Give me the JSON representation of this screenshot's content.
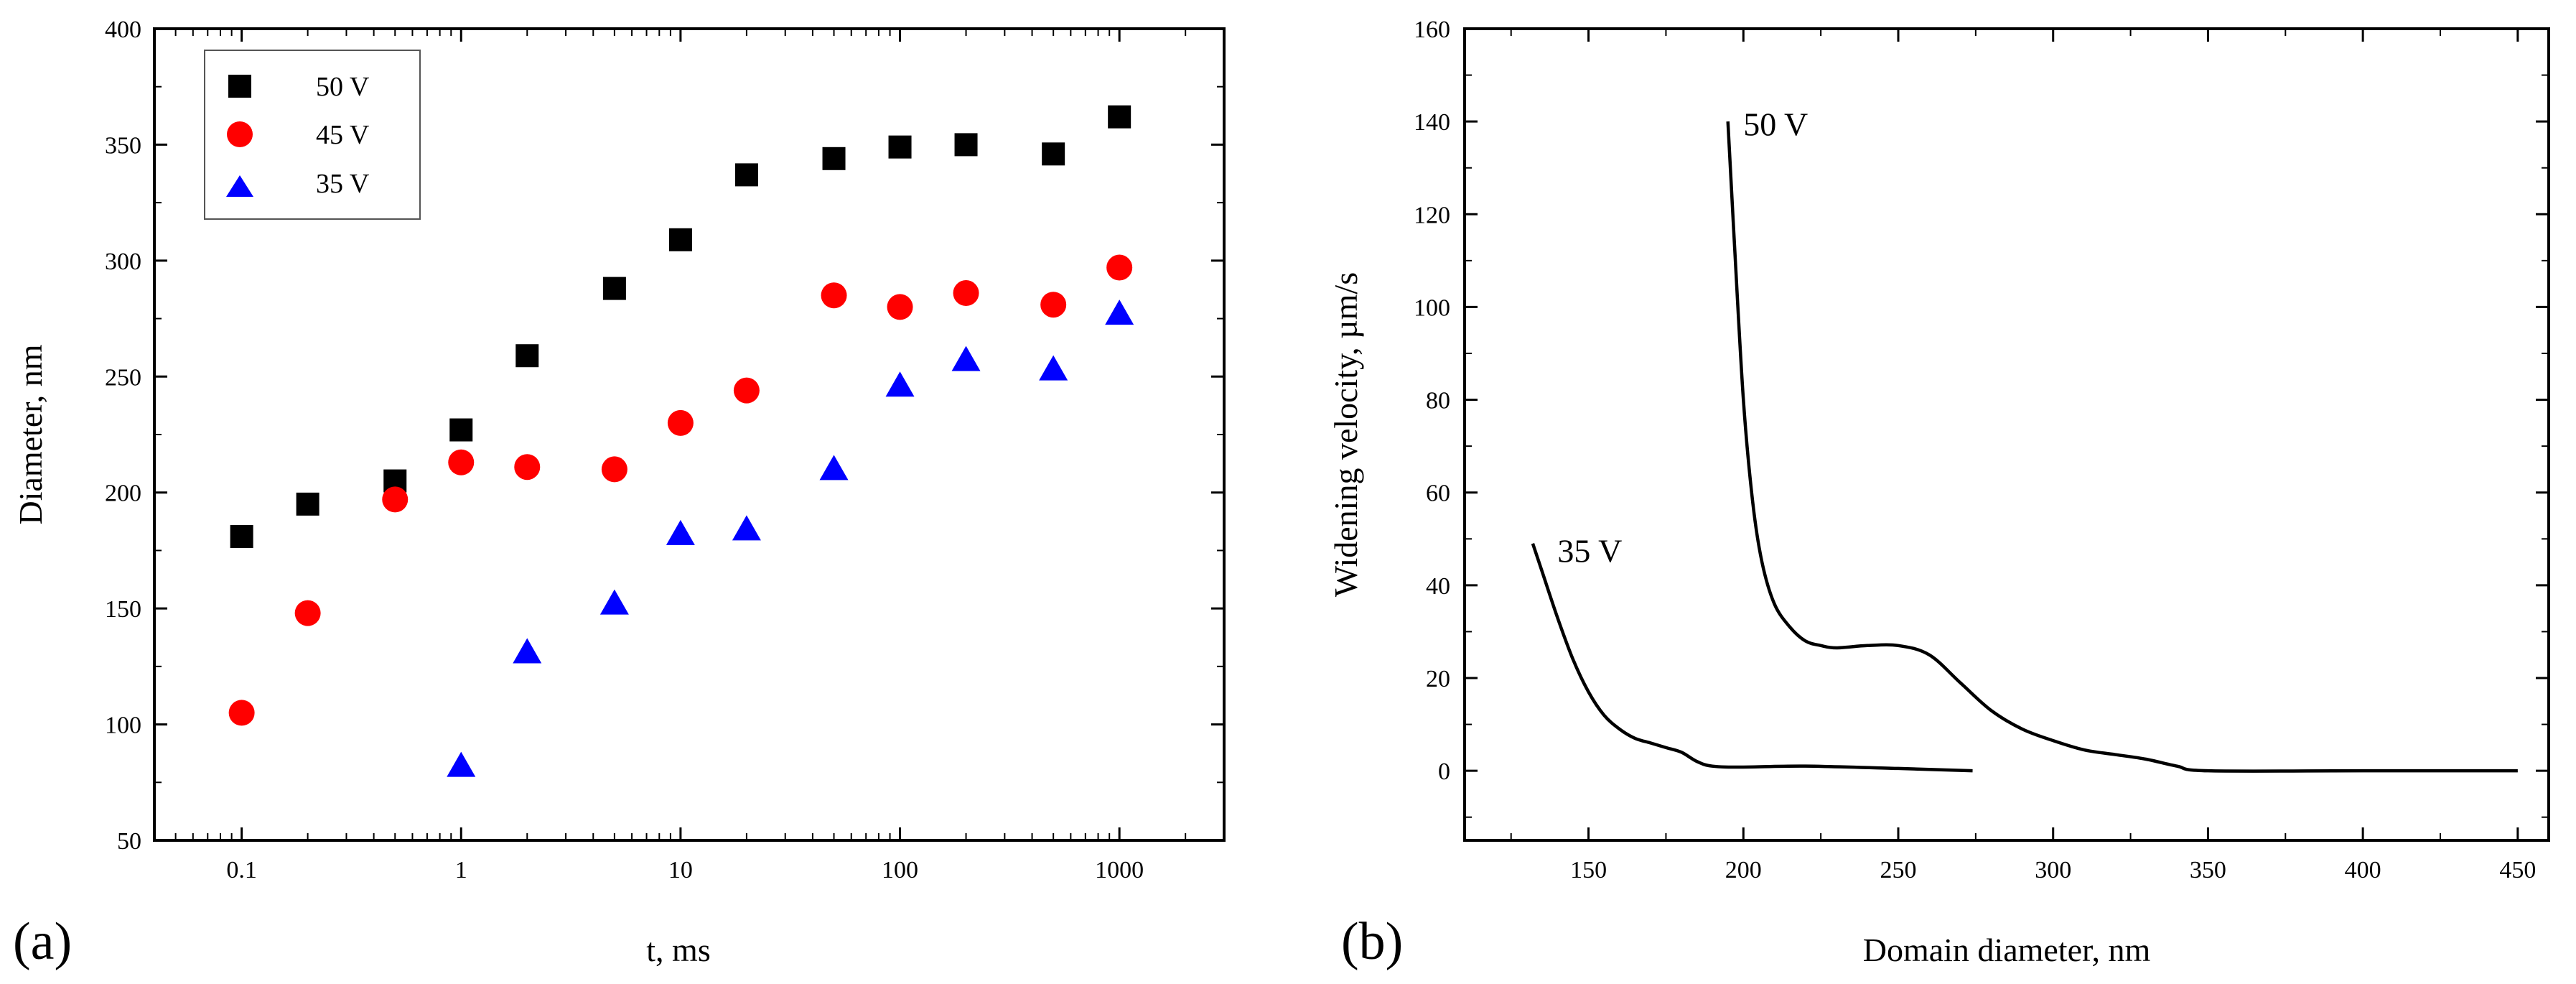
{
  "chart_data": [
    {
      "panel_label": "(a)",
      "type": "scatter",
      "xscale": "log",
      "xlabel": "t, ms",
      "ylabel": "Diameter, nm",
      "xlim": [
        0.04,
        3000
      ],
      "ylim": [
        50,
        400
      ],
      "xticks": [
        0.1,
        1,
        10,
        100,
        1000
      ],
      "xtick_labels": [
        "0.1",
        "1",
        "10",
        "100",
        "1000"
      ],
      "yticks": [
        50,
        100,
        150,
        200,
        250,
        300,
        350,
        400
      ],
      "ytick_labels": [
        "50",
        "100",
        "150",
        "200",
        "250",
        "300",
        "350",
        "400"
      ],
      "legend_position": "top-left",
      "series": [
        {
          "name": "50 V",
          "marker": "square",
          "color": "#000000",
          "x": [
            0.1,
            0.2,
            0.5,
            1,
            2,
            5,
            10,
            20,
            50,
            100,
            200,
            500,
            1000
          ],
          "y": [
            181,
            195,
            205,
            227,
            259,
            288,
            309,
            337,
            344,
            349,
            350,
            346,
            362
          ]
        },
        {
          "name": "45 V",
          "marker": "circle",
          "color": "#ff0000",
          "x": [
            0.1,
            0.2,
            0.5,
            1,
            2,
            5,
            10,
            20,
            50,
            100,
            200,
            500,
            1000
          ],
          "y": [
            105,
            148,
            197,
            213,
            211,
            210,
            230,
            244,
            285,
            280,
            286,
            281,
            297
          ]
        },
        {
          "name": "35 V",
          "marker": "triangle",
          "color": "#0000ff",
          "x": [
            1,
            2,
            5,
            10,
            20,
            50,
            100,
            200,
            500,
            1000
          ],
          "y": [
            82,
            131,
            152,
            182,
            184,
            210,
            246,
            257,
            253,
            277
          ]
        }
      ]
    },
    {
      "panel_label": "(b)",
      "type": "line",
      "xlabel": "Domain diameter, nm",
      "ylabel": "Widening velocity, µm/s",
      "xlim": [
        110,
        460
      ],
      "ylim": [
        -15,
        160
      ],
      "xticks": [
        150,
        200,
        250,
        300,
        350,
        400,
        450
      ],
      "xtick_labels": [
        "150",
        "200",
        "250",
        "300",
        "350",
        "400",
        "450"
      ],
      "yticks": [
        0,
        20,
        40,
        60,
        80,
        100,
        120,
        140,
        160
      ],
      "ytick_labels": [
        "0",
        "20",
        "40",
        "60",
        "80",
        "100",
        "120",
        "140",
        "160"
      ],
      "series": [
        {
          "name": "35 V",
          "color": "#000000",
          "x": [
            132,
            135,
            140,
            145,
            150,
            155,
            160,
            165,
            170,
            175,
            180,
            185,
            190,
            200,
            220,
            250,
            274
          ],
          "y": [
            49,
            43,
            33,
            24,
            17,
            12,
            9,
            7,
            6,
            5,
            4,
            2,
            1,
            0.8,
            1,
            0.5,
            0
          ]
        },
        {
          "name": "50 V",
          "color": "#000000",
          "x": [
            195,
            197,
            200,
            203,
            206,
            210,
            215,
            220,
            225,
            230,
            240,
            250,
            260,
            270,
            280,
            290,
            300,
            310,
            320,
            330,
            340,
            350,
            400,
            450
          ],
          "y": [
            140,
            115,
            80,
            58,
            45,
            36,
            31,
            28,
            27,
            26.5,
            27,
            27,
            25,
            19,
            13,
            9,
            6.5,
            4.5,
            3.5,
            2.5,
            1,
            0,
            0,
            0
          ]
        }
      ],
      "annotations": [
        {
          "text": "50 V",
          "x": 200,
          "y": 137
        },
        {
          "text": "35 V",
          "x": 140,
          "y": 45
        }
      ]
    }
  ]
}
